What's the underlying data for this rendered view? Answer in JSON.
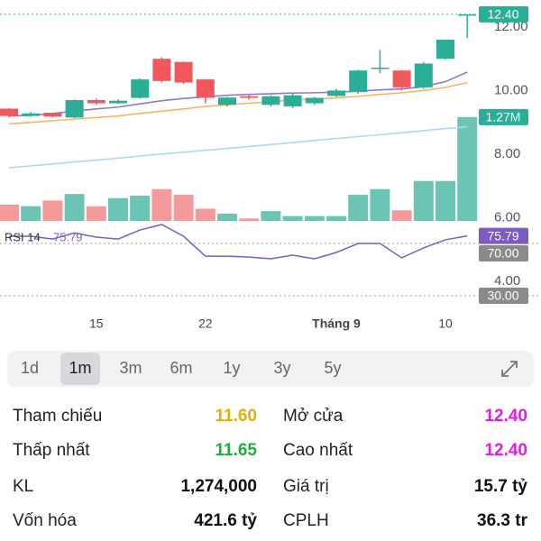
{
  "chart_data": {
    "type": "candlestick",
    "categories": [
      null,
      null,
      null,
      null,
      "15",
      null,
      null,
      null,
      null,
      "22",
      null,
      null,
      null,
      null,
      null,
      "Tháng 9",
      null,
      null,
      null,
      null,
      "10",
      null
    ],
    "open": [
      9.43,
      9.2,
      9.3,
      9.15,
      9.7,
      9.6,
      9.77,
      11.0,
      10.9,
      10.35,
      9.55,
      9.82,
      9.55,
      9.5,
      9.6,
      9.83,
      9.95,
      10.7,
      10.63,
      10.1,
      11.0,
      12.4
    ],
    "high": [
      9.45,
      9.32,
      9.3,
      9.72,
      9.75,
      9.72,
      10.38,
      11.05,
      10.9,
      10.35,
      9.8,
      9.85,
      9.85,
      9.9,
      9.8,
      10.05,
      10.65,
      11.28,
      10.65,
      10.9,
      11.6,
      12.4
    ],
    "low": [
      9.15,
      9.18,
      9.15,
      9.13,
      9.55,
      9.58,
      9.75,
      10.25,
      10.2,
      9.6,
      9.5,
      9.72,
      9.5,
      9.45,
      9.55,
      9.8,
      9.9,
      10.55,
      10.0,
      10.05,
      10.97,
      11.65
    ],
    "close": [
      9.2,
      9.28,
      9.18,
      9.7,
      9.6,
      9.68,
      10.35,
      10.3,
      10.25,
      9.77,
      9.78,
      9.77,
      9.82,
      9.85,
      9.77,
      10.0,
      10.63,
      10.72,
      10.1,
      10.85,
      11.6,
      12.4
    ],
    "up_color": "#2bae97",
    "down_color": "#f0585d",
    "ylim": [
      3.2,
      12.85
    ],
    "yticks": [
      {
        "value": 12,
        "label": "12.00"
      },
      {
        "value": 10,
        "label": "10.00"
      },
      {
        "value": 8,
        "label": "8.00"
      },
      {
        "value": 6,
        "label": "6.00"
      },
      {
        "value": 4,
        "label": "4.00"
      }
    ],
    "price_badge": {
      "value": 12.4,
      "label": "12.40"
    },
    "lines": [
      {
        "color": "#8e7cc3",
        "values": [
          9.2,
          9.22,
          9.28,
          9.35,
          9.42,
          9.48,
          9.58,
          9.68,
          9.75,
          9.8,
          9.85,
          9.88,
          9.9,
          9.92,
          9.93,
          9.95,
          9.98,
          10.02,
          10.05,
          10.12,
          10.28,
          10.58
        ]
      },
      {
        "color": "#f3b562",
        "values": [
          8.95,
          9.0,
          9.05,
          9.1,
          9.15,
          9.2,
          9.28,
          9.35,
          9.42,
          9.5,
          9.55,
          9.6,
          9.65,
          9.7,
          9.73,
          9.77,
          9.82,
          9.88,
          9.93,
          10.0,
          10.1,
          10.25
        ]
      },
      {
        "color": "#a9dcf2",
        "values": [
          7.57,
          7.63,
          7.69,
          7.75,
          7.81,
          7.87,
          7.94,
          8.0,
          8.06,
          8.12,
          8.18,
          8.24,
          8.3,
          8.36,
          8.43,
          8.49,
          8.55,
          8.61,
          8.67,
          8.74,
          8.8,
          8.86
        ]
      }
    ],
    "volume": {
      "values": [
        200000,
        180000,
        250000,
        330000,
        180000,
        280000,
        310000,
        390000,
        320000,
        150000,
        90000,
        30000,
        120000,
        60000,
        60000,
        60000,
        320000,
        390000,
        130000,
        490000,
        490000,
        1274000
      ],
      "up_color": "#6cc4b4",
      "down_color": "#f59a9b",
      "lim": [
        0,
        2710000
      ],
      "badge": {
        "value": 1274000,
        "label": "1.27M"
      }
    },
    "rsi": {
      "label": "RSI 14",
      "color": "#7c5cc4",
      "values": [
        75.5,
        75.5,
        73.4,
        78,
        74.8,
        73.4,
        80.3,
        84.5,
        75.5,
        60.3,
        60.3,
        59.6,
        58.3,
        61,
        58.3,
        63.1,
        70,
        70,
        59,
        66.6,
        72.8,
        75.79
      ],
      "value_label": "75.79",
      "lim": [
        0,
        100
      ],
      "levels": [
        {
          "value": 70,
          "label": "70.00"
        },
        {
          "value": 30,
          "label": "30.00"
        }
      ]
    }
  },
  "timeframes": {
    "options": [
      "1d",
      "1m",
      "3m",
      "6m",
      "1y",
      "3y",
      "5y"
    ],
    "active": 1
  },
  "stats": {
    "left": [
      {
        "label": "Tham chiếu",
        "value": "11.60",
        "color": "#e2b100"
      },
      {
        "label": "Thấp nhất",
        "value": "11.65",
        "color": "#1fae3a"
      },
      {
        "label": "KL",
        "value": "1,274,000",
        "color": "#111111"
      },
      {
        "label": "Vốn hóa",
        "value": "421.6 tỷ",
        "color": "#111111"
      }
    ],
    "right": [
      {
        "label": "Mở cửa",
        "value": "12.40",
        "color": "#e01ee0"
      },
      {
        "label": "Cao nhất",
        "value": "12.40",
        "color": "#e01ee0"
      },
      {
        "label": "Giá trị",
        "value": "15.7 tỷ",
        "color": "#111111"
      },
      {
        "label": "CPLH",
        "value": "36.3 tr",
        "color": "#111111"
      }
    ]
  }
}
